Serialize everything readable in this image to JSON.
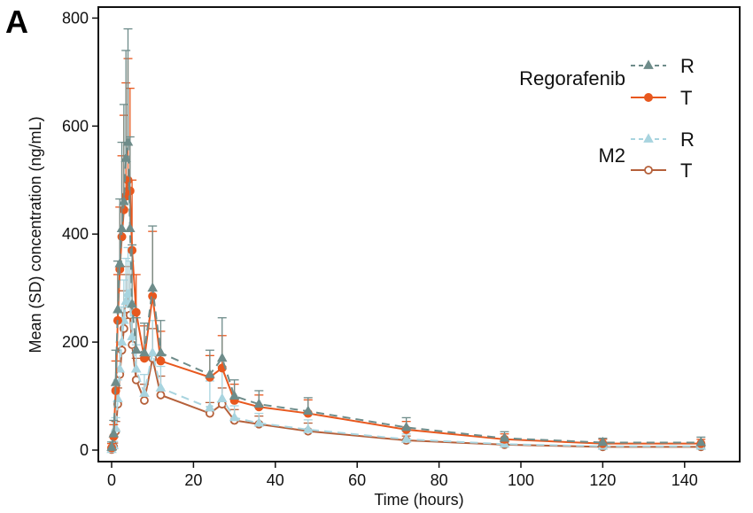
{
  "panel_label": "A",
  "chart_data": {
    "type": "line",
    "title": "",
    "xlabel": "Time (hours)",
    "ylabel": "Mean (SD) concentration (ng/mL)",
    "xlim": [
      -3,
      153
    ],
    "ylim": [
      -20,
      815
    ],
    "xticks": [
      0,
      20,
      40,
      60,
      80,
      100,
      120,
      140
    ],
    "yticks": [
      0,
      200,
      400,
      600,
      800
    ],
    "grid": false,
    "legend_position": "top-right",
    "legend": [
      {
        "group": "Regorafenib",
        "entries": [
          {
            "label": "R",
            "series": 0
          },
          {
            "label": "T",
            "series": 1
          }
        ]
      },
      {
        "group": "M2",
        "entries": [
          {
            "label": "R",
            "series": 2
          },
          {
            "label": "T",
            "series": 3
          }
        ]
      }
    ],
    "x": [
      0,
      0.5,
      1,
      1.5,
      2,
      2.5,
      3,
      3.5,
      4,
      4.5,
      5,
      6,
      8,
      10,
      12,
      24,
      27,
      30,
      36,
      48,
      72,
      96,
      120,
      144
    ],
    "series": [
      {
        "name": "Regorafenib R",
        "color": "#6e8c8a",
        "marker": "triangle",
        "marker_fill": "#6e8c8a",
        "dash": true,
        "values": [
          5,
          30,
          125,
          260,
          345,
          410,
          460,
          540,
          570,
          410,
          270,
          185,
          180,
          300,
          180,
          140,
          170,
          100,
          85,
          72,
          42,
          22,
          14,
          14
        ],
        "sd": [
          10,
          25,
          60,
          90,
          120,
          160,
          180,
          200,
          210,
          170,
          110,
          60,
          55,
          115,
          60,
          45,
          75,
          30,
          25,
          25,
          18,
          12,
          8,
          10
        ]
      },
      {
        "name": "Regorafenib T",
        "color": "#e8581e",
        "marker": "circle",
        "marker_fill": "#e8581e",
        "dash": false,
        "values": [
          4,
          25,
          110,
          240,
          335,
          395,
          445,
          470,
          500,
          480,
          370,
          255,
          170,
          285,
          165,
          135,
          152,
          92,
          80,
          68,
          38,
          20,
          12,
          12
        ],
        "sd": [
          8,
          22,
          55,
          85,
          115,
          150,
          175,
          210,
          225,
          190,
          130,
          70,
          60,
          120,
          55,
          40,
          60,
          30,
          22,
          25,
          15,
          10,
          8,
          8
        ]
      },
      {
        "name": "M2 R",
        "color": "#a8d4df",
        "marker": "triangle",
        "marker_fill": "#a8d4df",
        "dash": true,
        "values": [
          1,
          8,
          40,
          95,
          150,
          200,
          240,
          275,
          290,
          270,
          210,
          150,
          105,
          180,
          115,
          78,
          95,
          60,
          50,
          38,
          20,
          11,
          7,
          7
        ],
        "sd": [
          3,
          8,
          20,
          35,
          50,
          65,
          75,
          80,
          85,
          80,
          65,
          45,
          35,
          60,
          40,
          50,
          60,
          22,
          18,
          18,
          10,
          6,
          4,
          4
        ]
      },
      {
        "name": "M2 T",
        "color": "#b5603a",
        "marker": "circle-open",
        "marker_fill": "#ffffff",
        "dash": false,
        "values": [
          1,
          6,
          35,
          85,
          140,
          185,
          225,
          250,
          260,
          250,
          195,
          130,
          92,
          170,
          102,
          68,
          85,
          55,
          48,
          35,
          18,
          10,
          6,
          6
        ],
        "sd": [
          3,
          7,
          18,
          30,
          45,
          60,
          70,
          75,
          80,
          75,
          60,
          40,
          30,
          55,
          35,
          20,
          30,
          20,
          15,
          15,
          8,
          5,
          3,
          3
        ]
      }
    ]
  }
}
